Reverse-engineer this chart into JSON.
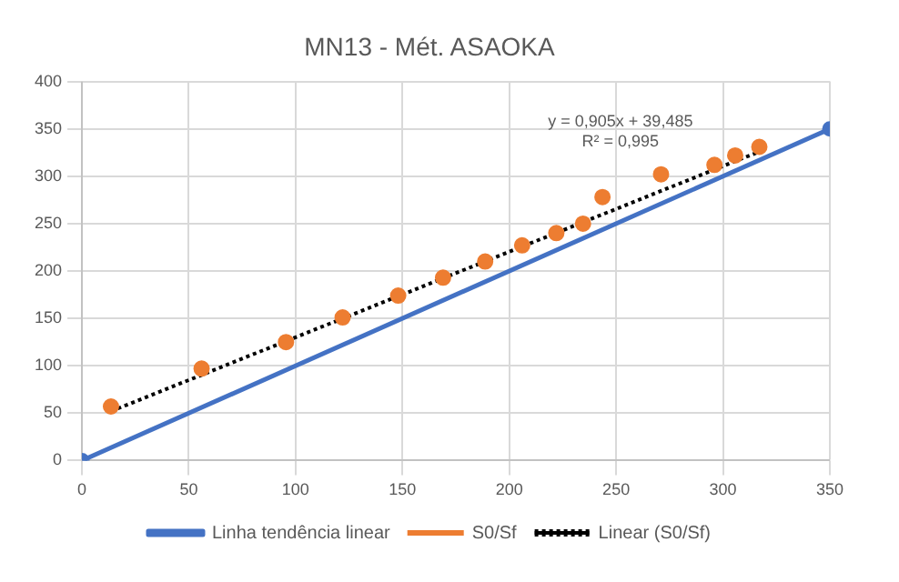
{
  "chart_data": {
    "type": "scatter",
    "title": "MN13 - Mét. ASAOKA",
    "series": [
      {
        "name": "Linha tendência linear",
        "type": "line",
        "color": "#4472c4",
        "x": [
          0,
          350
        ],
        "values": [
          0,
          350
        ],
        "marker": "circle",
        "line_style": "solid"
      },
      {
        "name": "S0/Sf",
        "type": "scatter",
        "color": "#ed7d31",
        "x": [
          13.6,
          56,
          95.5,
          122,
          148,
          169,
          188.7,
          206,
          222,
          234.5,
          243.6,
          271,
          296,
          305.7,
          317
        ],
        "values": [
          57,
          97,
          125,
          151,
          174,
          193,
          210,
          227,
          240,
          250,
          278,
          302,
          312,
          322,
          331
        ],
        "marker": "circle"
      },
      {
        "name": "Linear (S0/Sf)",
        "type": "line",
        "color": "#000000",
        "x": [
          13.6,
          317
        ],
        "values": [
          52,
          326
        ],
        "marker": "none",
        "line_style": "dotted"
      }
    ],
    "annotations": [
      "y = 0,905x + 39,485",
      "R² = 0,995"
    ],
    "xlim": [
      0,
      350
    ],
    "xticks": [
      0,
      50,
      100,
      150,
      200,
      250,
      300,
      350
    ],
    "ylim": [
      0,
      400
    ],
    "yticks": [
      0,
      50,
      100,
      150,
      200,
      250,
      300,
      350,
      400
    ],
    "grid": true,
    "legend": "bottom"
  }
}
